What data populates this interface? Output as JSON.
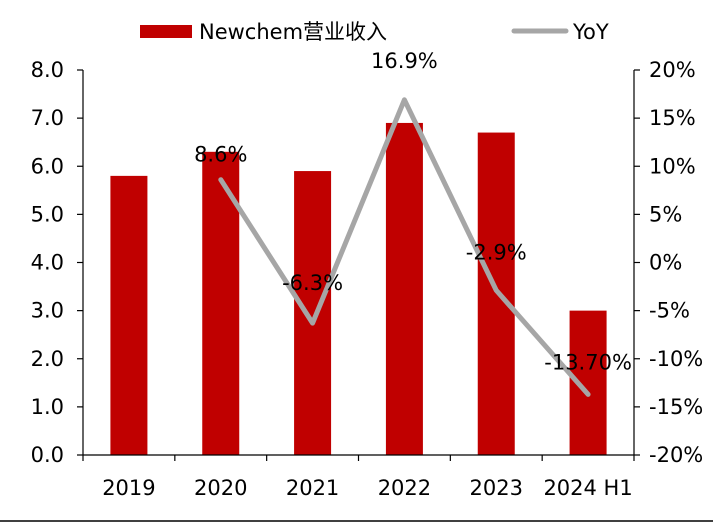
{
  "chart_data": {
    "type": "bar",
    "categories": [
      "2019",
      "2020",
      "2021",
      "2022",
      "2023",
      "2024 H1"
    ],
    "series": [
      {
        "name": "Newchem营业收入",
        "type": "bar",
        "axis": "left",
        "values": [
          5.8,
          6.3,
          5.9,
          6.9,
          6.7,
          3.0
        ],
        "color": "#c00000"
      },
      {
        "name": "YoY",
        "type": "line",
        "axis": "right",
        "values": [
          null,
          8.6,
          -6.3,
          16.9,
          -2.9,
          -13.7
        ],
        "labels": [
          "",
          "8.6%",
          "-6.3%",
          "16.9%",
          "-2.9%",
          "-13.70%"
        ],
        "color": "#a6a6a6"
      }
    ],
    "y_left": {
      "min": 0,
      "max": 8,
      "step": 1,
      "tick_labels": [
        "0.0",
        "1.0",
        "2.0",
        "3.0",
        "4.0",
        "5.0",
        "6.0",
        "7.0",
        "8.0"
      ]
    },
    "y_right": {
      "min": -20,
      "max": 20,
      "step": 5,
      "tick_labels": [
        "-20%",
        "-15%",
        "-10%",
        "-5%",
        "0%",
        "5%",
        "10%",
        "15%",
        "20%"
      ]
    },
    "legend_position": "top",
    "grid": false
  }
}
